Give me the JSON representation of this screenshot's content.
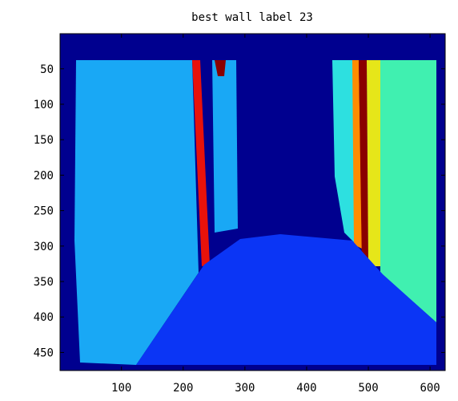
{
  "chart_data": {
    "type": "image",
    "title": "best wall label 23",
    "xlim": [
      0.5,
      624.5
    ],
    "ylim": [
      475.5,
      0.5
    ],
    "xticks": [
      100,
      200,
      300,
      400,
      500,
      600
    ],
    "yticks": [
      50,
      100,
      150,
      200,
      250,
      300,
      350,
      400,
      450
    ]
  }
}
